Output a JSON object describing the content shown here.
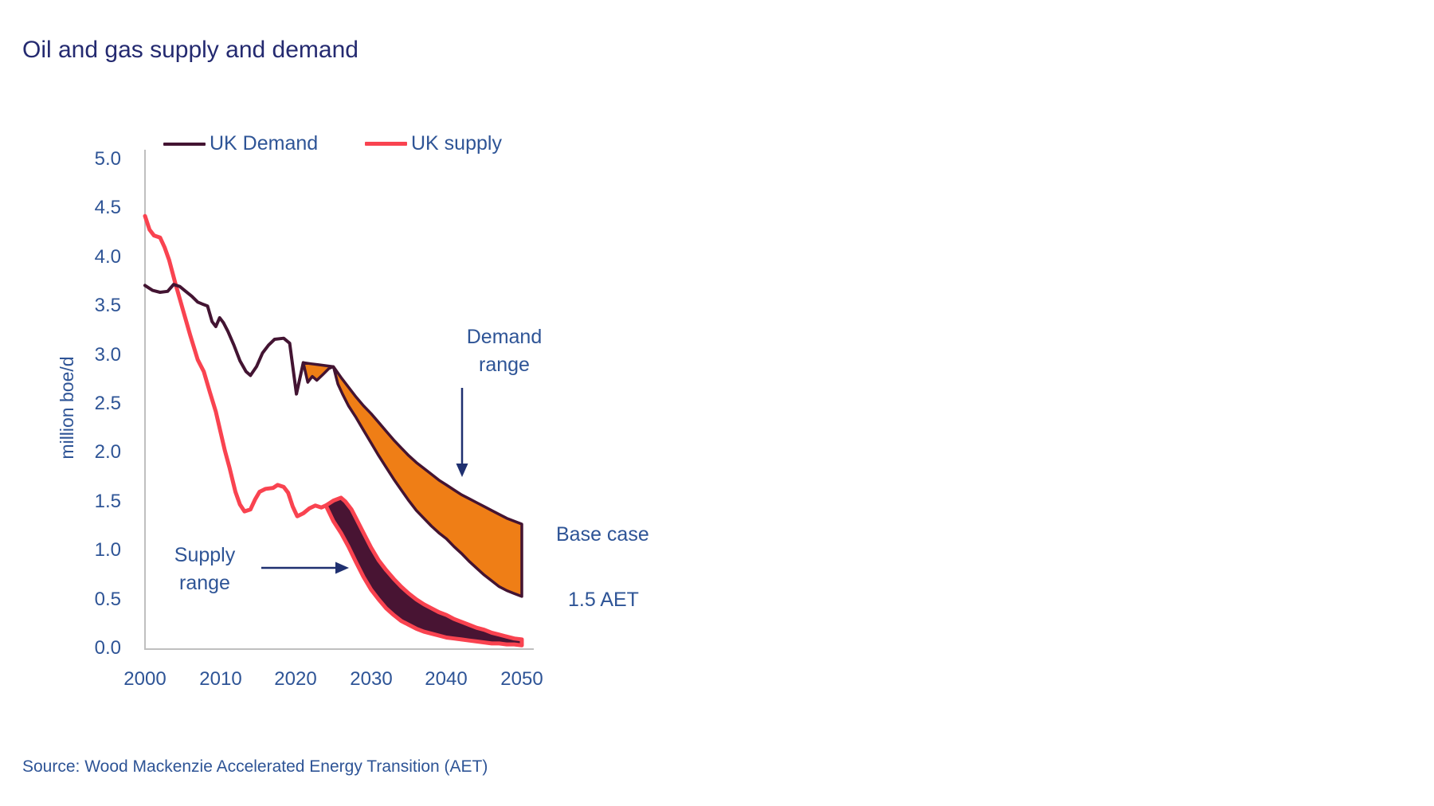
{
  "title": "Oil and gas supply and demand",
  "source": "Source: Wood Mackenzie Accelerated Energy Transition (AET)",
  "legend": [
    {
      "label": "UK Demand",
      "color": "#431432",
      "line_width": 4
    },
    {
      "label": "UK supply",
      "color": "#F94350",
      "line_width": 5
    }
  ],
  "annotations": {
    "demand_range": {
      "line1": "Demand",
      "line2": "range"
    },
    "supply_range": {
      "line1": "Supply",
      "line2": "range"
    },
    "base_case": "Base case",
    "aet_case": "1.5 AET"
  },
  "colors": {
    "title_text": "#242A70",
    "label_text": "#2E5496",
    "arrow": "#1F3070",
    "axis_line": "#BFBFBF",
    "demand_line": "#431432",
    "supply_line": "#F94350",
    "demand_band_fill": "#EF7E16",
    "supply_band_fill": "#481433"
  },
  "chart_data": {
    "type": "line",
    "title": "Oil and gas supply and demand",
    "xlabel": "",
    "ylabel": "million boe/d",
    "xlim": [
      2000,
      2050
    ],
    "ylim": [
      0.0,
      5.0
    ],
    "grid": false,
    "legend_position": "top",
    "x_tick_labels": [
      "2000",
      "2010",
      "2020",
      "2030",
      "2040",
      "2050"
    ],
    "y_tick_labels": [
      "0.0",
      "0.5",
      "1.0",
      "1.5",
      "2.0",
      "2.5",
      "3.0",
      "3.5",
      "4.0",
      "4.5",
      "5.0"
    ],
    "series": [
      {
        "id": "supply-history",
        "name": "UK supply",
        "color": "#F94350",
        "width": 5,
        "draw_line": true,
        "points": [
          [
            2000,
            4.42
          ],
          [
            2000.6,
            4.28
          ],
          [
            2001.2,
            4.22
          ],
          [
            2002,
            4.2
          ],
          [
            2002.6,
            4.1
          ],
          [
            2003.2,
            3.97
          ],
          [
            2004,
            3.74
          ],
          [
            2005,
            3.47
          ],
          [
            2006,
            3.2
          ],
          [
            2007,
            2.95
          ],
          [
            2007.8,
            2.83
          ],
          [
            2008.6,
            2.62
          ],
          [
            2009.4,
            2.42
          ],
          [
            2010,
            2.22
          ],
          [
            2010.6,
            2.02
          ],
          [
            2011.2,
            1.85
          ],
          [
            2012,
            1.6
          ],
          [
            2012.6,
            1.47
          ],
          [
            2013.2,
            1.4
          ],
          [
            2014,
            1.42
          ],
          [
            2014.6,
            1.52
          ],
          [
            2015.2,
            1.6
          ],
          [
            2016,
            1.63
          ],
          [
            2017,
            1.64
          ],
          [
            2017.6,
            1.67
          ],
          [
            2018.4,
            1.65
          ],
          [
            2019,
            1.59
          ],
          [
            2019.6,
            1.45
          ],
          [
            2020.2,
            1.35
          ],
          [
            2021,
            1.38
          ],
          [
            2021.8,
            1.43
          ],
          [
            2022.6,
            1.46
          ],
          [
            2023.4,
            1.44
          ],
          [
            2024,
            1.46
          ]
        ]
      },
      {
        "id": "demand-history",
        "name": "UK Demand",
        "color": "#431432",
        "width": 4,
        "draw_line": true,
        "points": [
          [
            2000,
            3.71
          ],
          [
            2001,
            3.66
          ],
          [
            2002,
            3.64
          ],
          [
            2003,
            3.65
          ],
          [
            2003.8,
            3.72
          ],
          [
            2004.6,
            3.7
          ],
          [
            2005.4,
            3.65
          ],
          [
            2006.2,
            3.6
          ],
          [
            2007,
            3.54
          ],
          [
            2007.6,
            3.52
          ],
          [
            2008.3,
            3.5
          ],
          [
            2008.9,
            3.34
          ],
          [
            2009.4,
            3.29
          ],
          [
            2009.9,
            3.38
          ],
          [
            2010.4,
            3.33
          ],
          [
            2011,
            3.24
          ],
          [
            2011.8,
            3.1
          ],
          [
            2012.6,
            2.94
          ],
          [
            2013.4,
            2.83
          ],
          [
            2014,
            2.79
          ],
          [
            2014.8,
            2.88
          ],
          [
            2015.6,
            3.02
          ],
          [
            2016.4,
            3.1
          ],
          [
            2017.2,
            3.16
          ],
          [
            2018.4,
            3.17
          ],
          [
            2019.2,
            3.12
          ],
          [
            2020.1,
            2.6
          ],
          [
            2021,
            2.92
          ]
        ]
      },
      {
        "id": "demand-base-case",
        "name": "UK Demand base case",
        "color": "#431432",
        "width": 3.5,
        "draw_line": false,
        "points": [
          [
            2021,
            2.92
          ],
          [
            2022,
            2.91
          ],
          [
            2023,
            2.9
          ],
          [
            2024,
            2.89
          ],
          [
            2025,
            2.88
          ],
          [
            2026,
            2.77
          ],
          [
            2027,
            2.67
          ],
          [
            2028,
            2.57
          ],
          [
            2029,
            2.48
          ],
          [
            2030,
            2.4
          ],
          [
            2031,
            2.31
          ],
          [
            2032,
            2.22
          ],
          [
            2033,
            2.13
          ],
          [
            2034,
            2.05
          ],
          [
            2035,
            1.97
          ],
          [
            2036,
            1.9
          ],
          [
            2037,
            1.84
          ],
          [
            2038,
            1.78
          ],
          [
            2039,
            1.72
          ],
          [
            2040,
            1.67
          ],
          [
            2041,
            1.62
          ],
          [
            2042,
            1.57
          ],
          [
            2043,
            1.53
          ],
          [
            2044,
            1.49
          ],
          [
            2045,
            1.45
          ],
          [
            2046,
            1.41
          ],
          [
            2047,
            1.37
          ],
          [
            2048,
            1.33
          ],
          [
            2049,
            1.3
          ],
          [
            2050,
            1.27
          ]
        ]
      },
      {
        "id": "demand-15aet",
        "name": "UK Demand 1.5 AET",
        "color": "#431432",
        "width": 3.5,
        "draw_line": false,
        "points": [
          [
            2021,
            2.92
          ],
          [
            2021.6,
            2.72
          ],
          [
            2022.2,
            2.78
          ],
          [
            2022.8,
            2.74
          ],
          [
            2023.6,
            2.8
          ],
          [
            2024.4,
            2.86
          ],
          [
            2025,
            2.88
          ],
          [
            2025.6,
            2.7
          ],
          [
            2026.2,
            2.6
          ],
          [
            2027,
            2.48
          ],
          [
            2028,
            2.36
          ],
          [
            2029,
            2.23
          ],
          [
            2030,
            2.1
          ],
          [
            2031,
            1.97
          ],
          [
            2032,
            1.85
          ],
          [
            2033,
            1.73
          ],
          [
            2034,
            1.62
          ],
          [
            2035,
            1.51
          ],
          [
            2036,
            1.41
          ],
          [
            2037,
            1.33
          ],
          [
            2038,
            1.25
          ],
          [
            2039,
            1.18
          ],
          [
            2040,
            1.12
          ],
          [
            2041,
            1.04
          ],
          [
            2042,
            0.97
          ],
          [
            2043,
            0.89
          ],
          [
            2044,
            0.82
          ],
          [
            2045,
            0.75
          ],
          [
            2046,
            0.69
          ],
          [
            2047,
            0.63
          ],
          [
            2048,
            0.59
          ],
          [
            2049,
            0.56
          ],
          [
            2050,
            0.53
          ]
        ]
      },
      {
        "id": "supply-base-case",
        "name": "UK supply base case",
        "color": "#F94350",
        "width": 5,
        "draw_line": false,
        "points": [
          [
            2024,
            1.46
          ],
          [
            2025,
            1.51
          ],
          [
            2026,
            1.54
          ],
          [
            2026.6,
            1.5
          ],
          [
            2027.4,
            1.42
          ],
          [
            2028,
            1.33
          ],
          [
            2029,
            1.18
          ],
          [
            2030,
            1.03
          ],
          [
            2031,
            0.9
          ],
          [
            2032,
            0.8
          ],
          [
            2033,
            0.71
          ],
          [
            2034,
            0.63
          ],
          [
            2035,
            0.56
          ],
          [
            2036,
            0.5
          ],
          [
            2037,
            0.45
          ],
          [
            2038,
            0.41
          ],
          [
            2039,
            0.37
          ],
          [
            2040,
            0.34
          ],
          [
            2041,
            0.3
          ],
          [
            2042,
            0.27
          ],
          [
            2043,
            0.24
          ],
          [
            2044,
            0.21
          ],
          [
            2045,
            0.19
          ],
          [
            2046,
            0.16
          ],
          [
            2047,
            0.14
          ],
          [
            2048,
            0.12
          ],
          [
            2049,
            0.1
          ],
          [
            2050,
            0.09
          ]
        ]
      },
      {
        "id": "supply-15aet",
        "name": "UK supply 1.5 AET",
        "color": "#F94350",
        "width": 5,
        "draw_line": false,
        "points": [
          [
            2024,
            1.46
          ],
          [
            2025,
            1.3
          ],
          [
            2026,
            1.18
          ],
          [
            2027,
            1.04
          ],
          [
            2028,
            0.88
          ],
          [
            2029,
            0.73
          ],
          [
            2030,
            0.6
          ],
          [
            2031,
            0.5
          ],
          [
            2032,
            0.41
          ],
          [
            2033,
            0.34
          ],
          [
            2034,
            0.28
          ],
          [
            2035,
            0.24
          ],
          [
            2036,
            0.2
          ],
          [
            2037,
            0.17
          ],
          [
            2038,
            0.15
          ],
          [
            2039,
            0.13
          ],
          [
            2040,
            0.11
          ],
          [
            2041,
            0.1
          ],
          [
            2042,
            0.09
          ],
          [
            2043,
            0.08
          ],
          [
            2044,
            0.07
          ],
          [
            2045,
            0.06
          ],
          [
            2046,
            0.05
          ],
          [
            2047,
            0.05
          ],
          [
            2048,
            0.04
          ],
          [
            2049,
            0.04
          ],
          [
            2050,
            0.03
          ]
        ]
      }
    ],
    "bands": [
      {
        "id": "demand-range",
        "name": "Demand range",
        "upper": "UK Demand base case",
        "lower": "UK Demand 1.5 AET",
        "fill": "#EF7E16",
        "edge": "#431432",
        "edge_width": 3.5
      },
      {
        "id": "supply-range",
        "name": "Supply range",
        "upper": "UK supply base case",
        "lower": "UK supply 1.5 AET",
        "fill": "#481433",
        "edge": "#F94350",
        "edge_width": 5
      }
    ]
  }
}
